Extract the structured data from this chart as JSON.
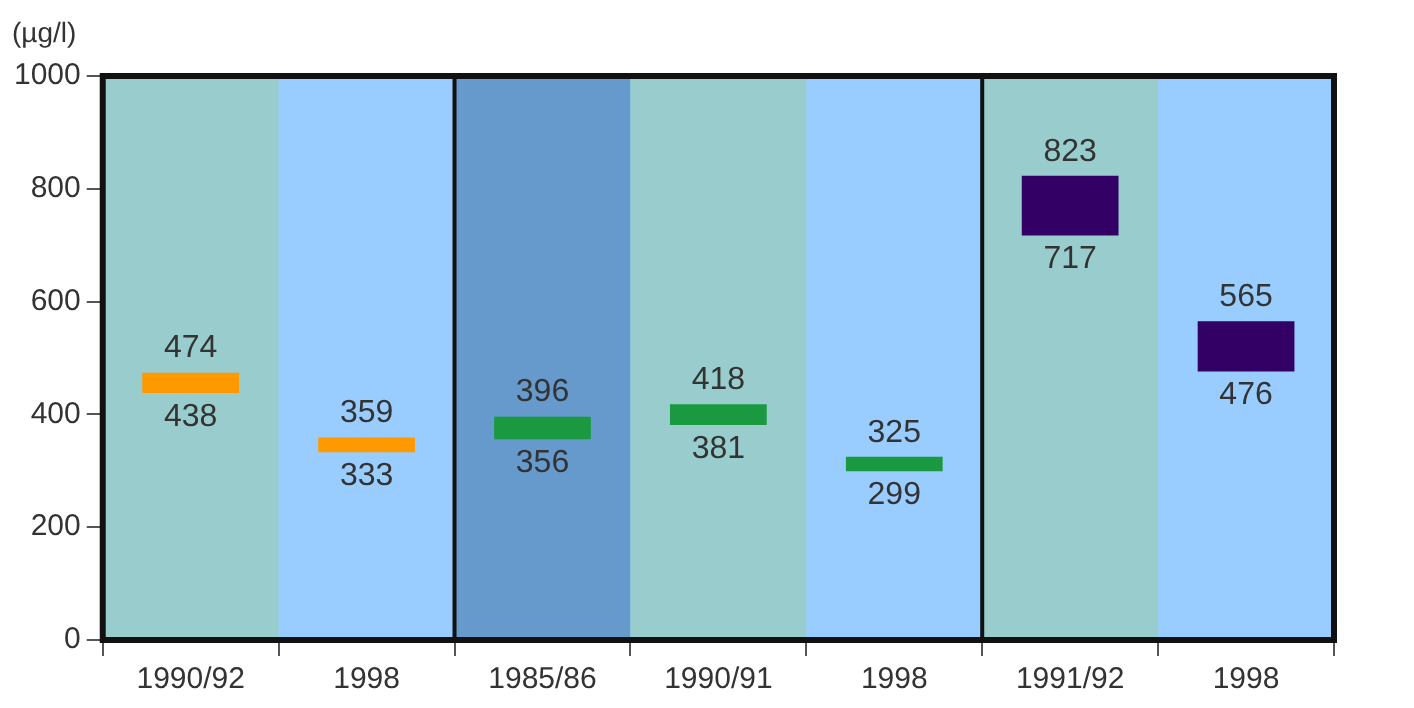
{
  "chart_data": {
    "type": "bar",
    "ylabel": "(µg/l)",
    "categories": [
      "1990/92",
      "1998",
      "1985/86",
      "1990/91",
      "1998",
      "1991/92",
      "1998"
    ],
    "base": [
      438,
      333,
      356,
      381,
      299,
      717,
      476
    ],
    "values": [
      36,
      26,
      40,
      37,
      26,
      106,
      89
    ],
    "colors": [
      "#ff9900",
      "#ff9900",
      "#1a9940",
      "#1a9940",
      "#1a9940",
      "#330066",
      "#330066"
    ],
    "bands": [
      {
        "axis": "y",
        "from": 0,
        "to": 1000,
        "color": "#99ccff"
      },
      {
        "axis": "x",
        "from": "1990/92",
        "to": "1990/92",
        "color": "#99cccc"
      },
      {
        "axis": "x",
        "from": "1985/86",
        "to": "1985/86",
        "color": "#6699cc"
      },
      {
        "axis": "x",
        "from": "1990/91",
        "to": "1990/91",
        "color": "#99cccc"
      },
      {
        "axis": "x",
        "from": "1991/92",
        "to": "1991/92",
        "color": "#99cccc"
      }
    ],
    "ylim": [
      0,
      1000
    ],
    "yticks": [
      0,
      200,
      400,
      600,
      800,
      1000
    ],
    "legend": false,
    "annotations": [
      "474",
      "438",
      "359",
      "333",
      "396",
      "356",
      "418",
      "381",
      "325",
      "299",
      "823",
      "717",
      "565",
      "476"
    ]
  }
}
